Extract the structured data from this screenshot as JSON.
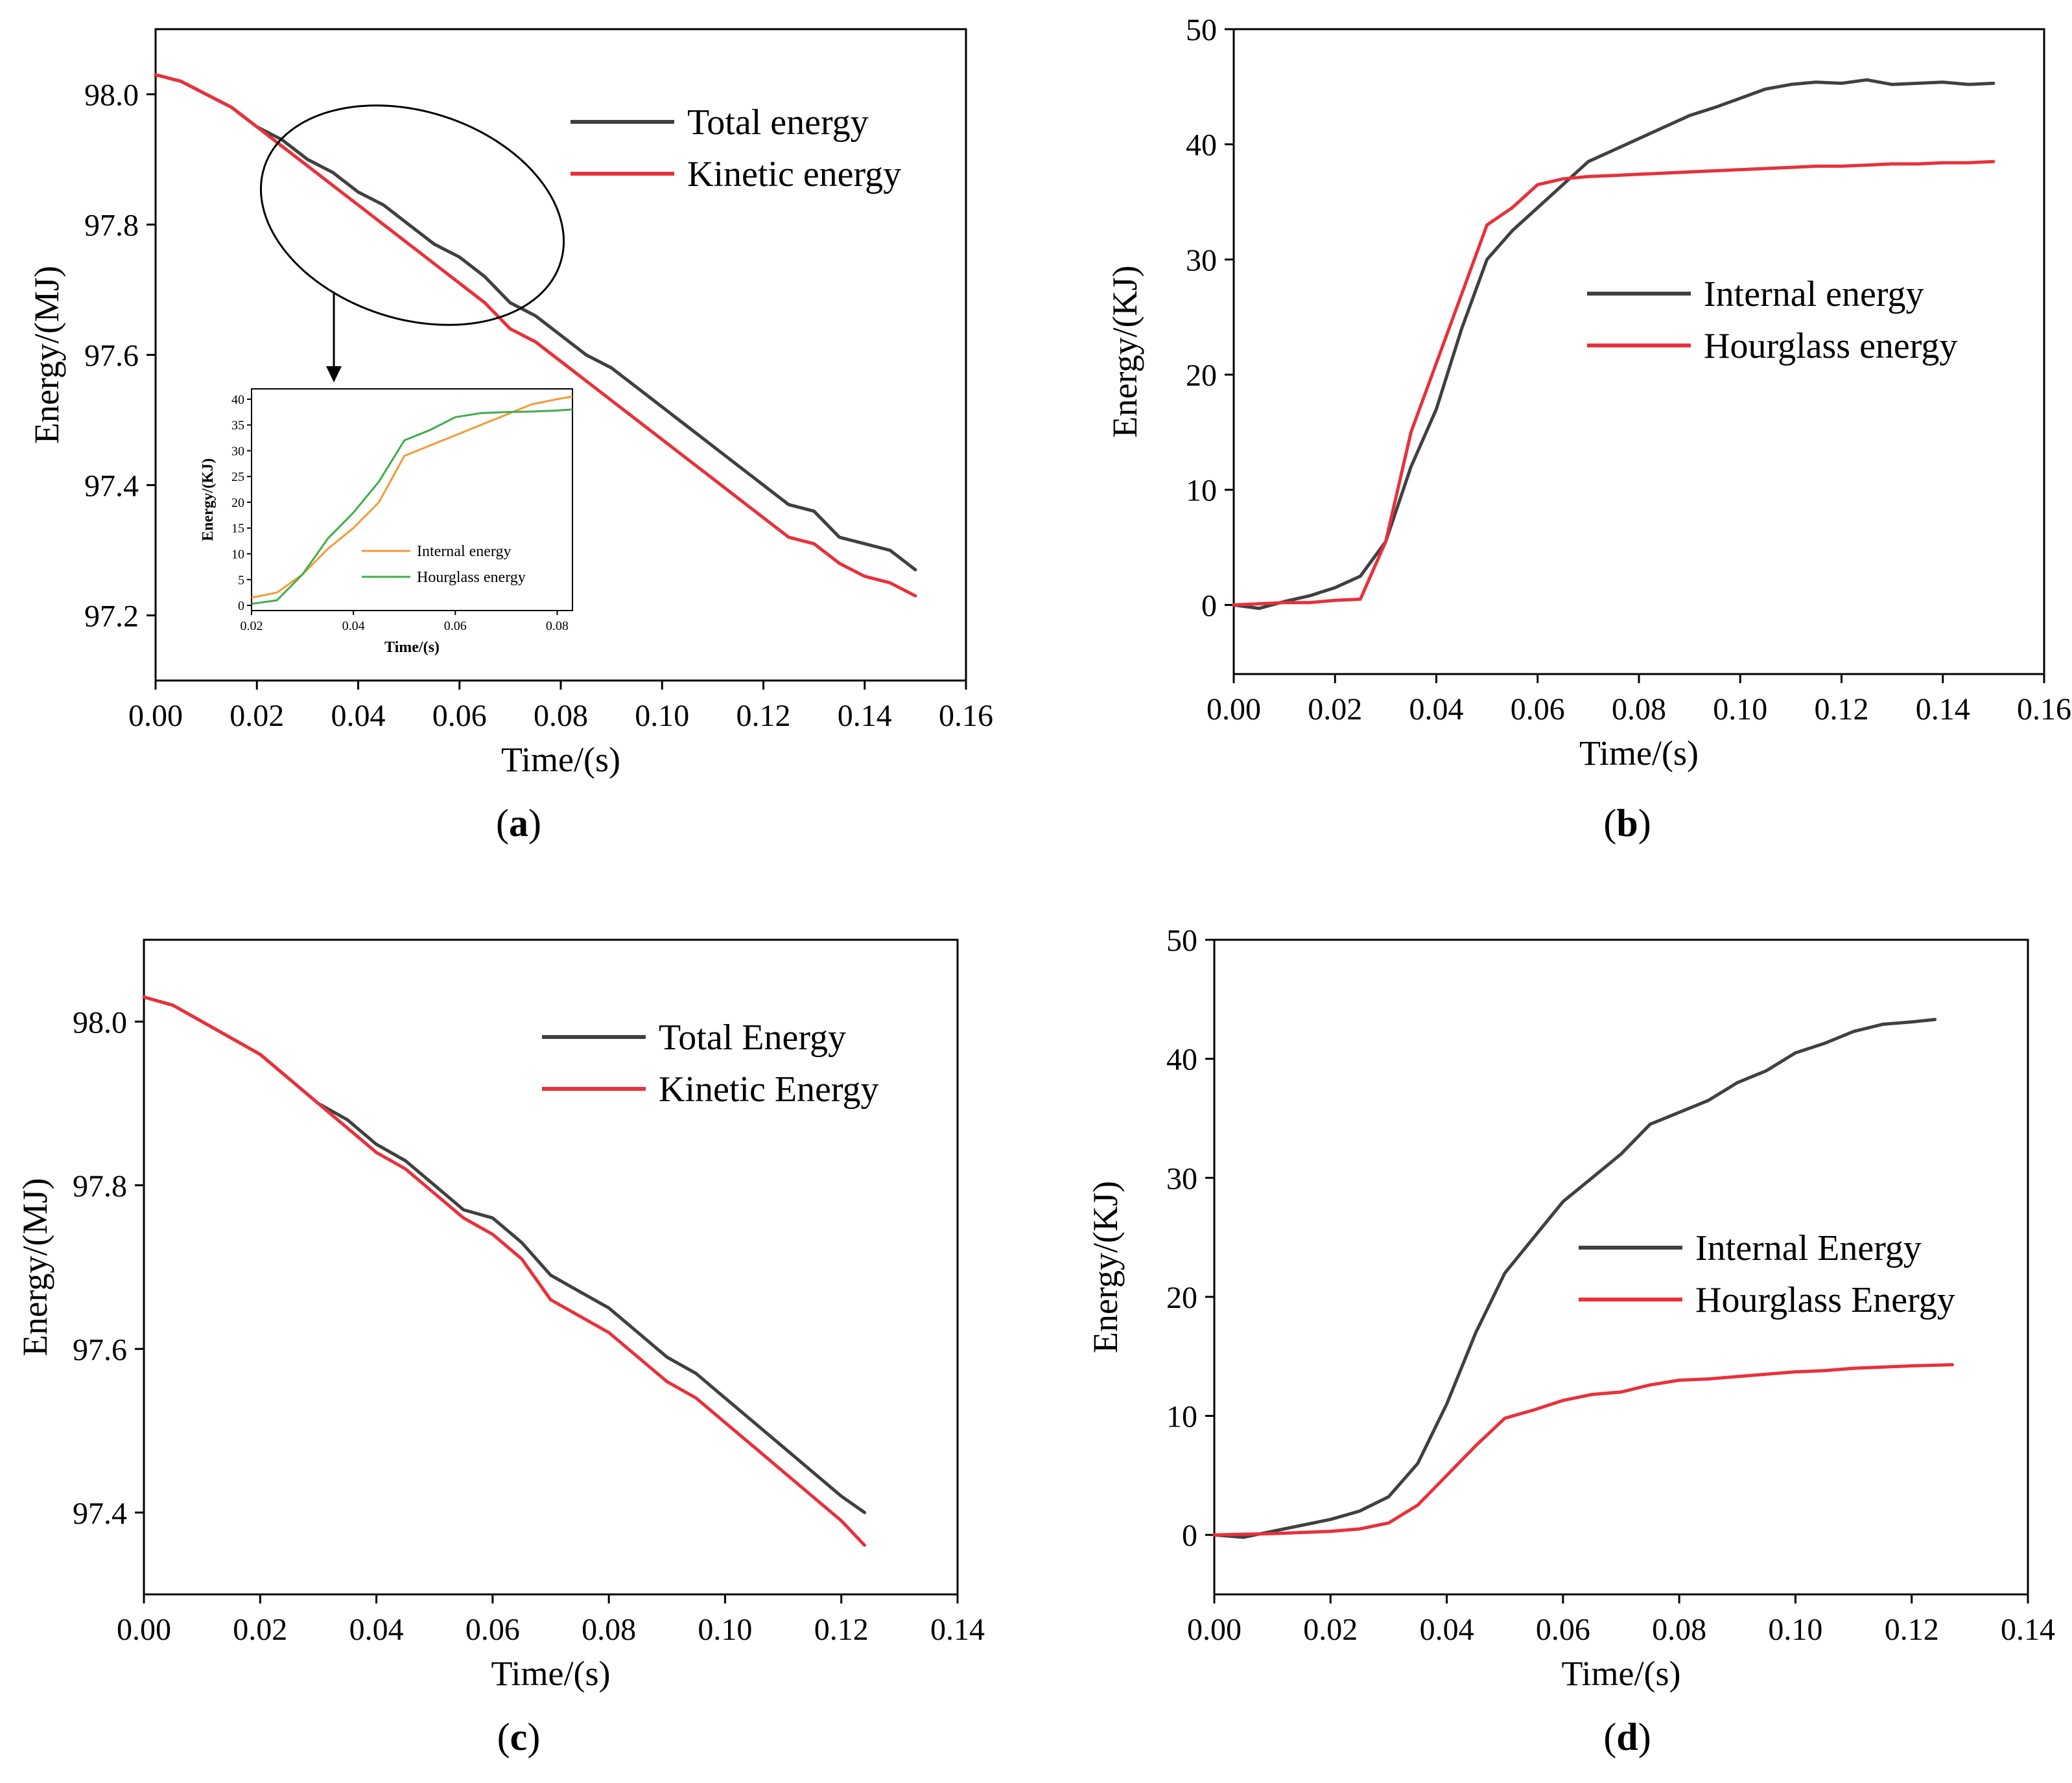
{
  "panels": [
    {
      "id": "a",
      "label_letter": "a"
    },
    {
      "id": "b",
      "label_letter": "b"
    },
    {
      "id": "c",
      "label_letter": "c"
    },
    {
      "id": "d",
      "label_letter": "d"
    }
  ],
  "chart_data": [
    {
      "id": "a",
      "type": "line",
      "xlabel": "Time/(s)",
      "ylabel": "Energy/(MJ)",
      "xlim": [
        0,
        0.16
      ],
      "ylim": [
        97.1,
        98.1
      ],
      "xticks": [
        "0.00",
        "0.02",
        "0.04",
        "0.06",
        "0.08",
        "0.10",
        "0.12",
        "0.14",
        "0.16"
      ],
      "yticks": [
        "97.2",
        "97.4",
        "97.6",
        "97.8",
        "98.0"
      ],
      "legend_position": "top-right",
      "series": [
        {
          "name": "Total energy",
          "color": "#404040",
          "x": [
            0,
            0.005,
            0.01,
            0.015,
            0.02,
            0.025,
            0.03,
            0.035,
            0.04,
            0.045,
            0.05,
            0.055,
            0.06,
            0.065,
            0.07,
            0.075,
            0.08,
            0.085,
            0.09,
            0.095,
            0.1,
            0.105,
            0.11,
            0.115,
            0.12,
            0.125,
            0.13,
            0.135,
            0.14,
            0.145,
            0.15
          ],
          "y": [
            98.03,
            98.02,
            98.0,
            97.98,
            97.95,
            97.93,
            97.9,
            97.88,
            97.85,
            97.83,
            97.8,
            97.77,
            97.75,
            97.72,
            97.68,
            97.66,
            97.63,
            97.6,
            97.58,
            97.55,
            97.52,
            97.49,
            97.46,
            97.43,
            97.4,
            97.37,
            97.36,
            97.32,
            97.31,
            97.3,
            97.27
          ]
        },
        {
          "name": "Kinetic energy",
          "color": "#e8313a",
          "x": [
            0,
            0.005,
            0.01,
            0.015,
            0.02,
            0.025,
            0.03,
            0.035,
            0.04,
            0.045,
            0.05,
            0.055,
            0.06,
            0.065,
            0.07,
            0.075,
            0.08,
            0.085,
            0.09,
            0.095,
            0.1,
            0.105,
            0.11,
            0.115,
            0.12,
            0.125,
            0.13,
            0.135,
            0.14,
            0.145,
            0.15
          ],
          "y": [
            98.03,
            98.02,
            98.0,
            97.98,
            97.95,
            97.92,
            97.89,
            97.86,
            97.83,
            97.8,
            97.77,
            97.74,
            97.71,
            97.68,
            97.64,
            97.62,
            97.59,
            97.56,
            97.53,
            97.5,
            97.47,
            97.44,
            97.41,
            97.38,
            97.35,
            97.32,
            97.31,
            97.28,
            97.26,
            97.25,
            97.23
          ]
        }
      ],
      "inset": {
        "xlabel": "Time/(s)",
        "ylabel": "Energy/(KJ)",
        "xlim": [
          0.02,
          0.083
        ],
        "ylim": [
          -1,
          42
        ],
        "xticks": [
          "0.02",
          "0.04",
          "0.06",
          "0.08"
        ],
        "yticks": [
          "0",
          "5",
          "10",
          "15",
          "20",
          "25",
          "30",
          "35",
          "40"
        ],
        "series": [
          {
            "name": "Internal energy",
            "color": "#f39a35",
            "x": [
              0.02,
              0.025,
              0.03,
              0.035,
              0.04,
              0.045,
              0.05,
              0.055,
              0.06,
              0.065,
              0.07,
              0.075,
              0.08,
              0.083
            ],
            "y": [
              1.5,
              2.5,
              6,
              11,
              15,
              20,
              29,
              31,
              33,
              35,
              37,
              39,
              40,
              40.5
            ]
          },
          {
            "name": "Hourglass energy",
            "color": "#3fae49",
            "x": [
              0.02,
              0.025,
              0.03,
              0.035,
              0.04,
              0.045,
              0.05,
              0.055,
              0.06,
              0.065,
              0.07,
              0.075,
              0.08,
              0.083
            ],
            "y": [
              0.3,
              1,
              6,
              13,
              18,
              24,
              32,
              34,
              36.5,
              37.3,
              37.5,
              37.6,
              37.8,
              38
            ]
          }
        ]
      }
    },
    {
      "id": "b",
      "type": "line",
      "xlabel": "Time/(s)",
      "ylabel": "Energy/(KJ)",
      "xlim": [
        0,
        0.16
      ],
      "ylim": [
        -6,
        50
      ],
      "xticks": [
        "0.00",
        "0.02",
        "0.04",
        "0.06",
        "0.08",
        "0.10",
        "0.12",
        "0.14",
        "0.16"
      ],
      "yticks": [
        "0",
        "10",
        "20",
        "30",
        "40",
        "50"
      ],
      "legend_position": "center-right",
      "series": [
        {
          "name": "Internal energy",
          "color": "#404040",
          "x": [
            0,
            0.005,
            0.01,
            0.015,
            0.02,
            0.025,
            0.03,
            0.035,
            0.04,
            0.045,
            0.05,
            0.055,
            0.06,
            0.065,
            0.07,
            0.075,
            0.08,
            0.085,
            0.09,
            0.095,
            0.1,
            0.105,
            0.11,
            0.115,
            0.12,
            0.125,
            0.13,
            0.135,
            0.14,
            0.145,
            0.15
          ],
          "y": [
            0,
            -0.3,
            0.3,
            0.8,
            1.5,
            2.5,
            5.5,
            12,
            17,
            24,
            30,
            32.5,
            34.5,
            36.5,
            38.5,
            39.5,
            40.5,
            41.5,
            42.5,
            43.2,
            44,
            44.8,
            45.2,
            45.4,
            45.3,
            45.6,
            45.2,
            45.3,
            45.4,
            45.2,
            45.3
          ]
        },
        {
          "name": "Hourglass energy",
          "color": "#e8313a",
          "x": [
            0,
            0.005,
            0.01,
            0.015,
            0.02,
            0.025,
            0.03,
            0.035,
            0.04,
            0.045,
            0.05,
            0.055,
            0.06,
            0.065,
            0.07,
            0.075,
            0.08,
            0.085,
            0.09,
            0.095,
            0.1,
            0.105,
            0.11,
            0.115,
            0.12,
            0.125,
            0.13,
            0.135,
            0.14,
            0.145,
            0.15
          ],
          "y": [
            0,
            0.1,
            0.2,
            0.2,
            0.4,
            0.5,
            5.5,
            15,
            21,
            27,
            33,
            34.5,
            36.5,
            37,
            37.2,
            37.3,
            37.4,
            37.5,
            37.6,
            37.7,
            37.8,
            37.9,
            38,
            38.1,
            38.1,
            38.2,
            38.3,
            38.3,
            38.4,
            38.4,
            38.5
          ]
        }
      ]
    },
    {
      "id": "c",
      "type": "line",
      "xlabel": "Time/(s)",
      "ylabel": "Energy/(MJ)",
      "xlim": [
        0,
        0.14
      ],
      "ylim": [
        97.3,
        98.1
      ],
      "xticks": [
        "0.00",
        "0.02",
        "0.04",
        "0.06",
        "0.08",
        "0.10",
        "0.12",
        "0.14"
      ],
      "yticks": [
        "97.4",
        "97.6",
        "97.8",
        "98.0"
      ],
      "legend_position": "top-right",
      "series": [
        {
          "name": "Total Energy",
          "color": "#404040",
          "x": [
            0,
            0.005,
            0.01,
            0.015,
            0.02,
            0.025,
            0.03,
            0.035,
            0.04,
            0.045,
            0.05,
            0.055,
            0.06,
            0.065,
            0.07,
            0.075,
            0.08,
            0.085,
            0.09,
            0.095,
            0.1,
            0.105,
            0.11,
            0.115,
            0.12,
            0.124
          ],
          "y": [
            98.03,
            98.02,
            98.0,
            97.98,
            97.96,
            97.93,
            97.9,
            97.88,
            97.85,
            97.83,
            97.8,
            97.77,
            97.76,
            97.73,
            97.69,
            97.67,
            97.65,
            97.62,
            97.59,
            97.57,
            97.54,
            97.51,
            97.48,
            97.45,
            97.42,
            97.4
          ]
        },
        {
          "name": "Kinetic Energy",
          "color": "#e8313a",
          "x": [
            0,
            0.005,
            0.01,
            0.015,
            0.02,
            0.025,
            0.03,
            0.035,
            0.04,
            0.045,
            0.05,
            0.055,
            0.06,
            0.065,
            0.07,
            0.075,
            0.08,
            0.085,
            0.09,
            0.095,
            0.1,
            0.105,
            0.11,
            0.115,
            0.12,
            0.124
          ],
          "y": [
            98.03,
            98.02,
            98.0,
            97.98,
            97.96,
            97.93,
            97.9,
            97.87,
            97.84,
            97.82,
            97.79,
            97.76,
            97.74,
            97.71,
            97.66,
            97.64,
            97.62,
            97.59,
            97.56,
            97.54,
            97.51,
            97.48,
            97.45,
            97.42,
            97.39,
            97.36
          ]
        }
      ]
    },
    {
      "id": "d",
      "type": "line",
      "xlabel": "Time/(s)",
      "ylabel": "Energy/(KJ)",
      "xlim": [
        0,
        0.14
      ],
      "ylim": [
        -5,
        50
      ],
      "xticks": [
        "0.00",
        "0.02",
        "0.04",
        "0.06",
        "0.08",
        "0.10",
        "0.12",
        "0.14"
      ],
      "yticks": [
        "0",
        "10",
        "20",
        "30",
        "40",
        "50"
      ],
      "legend_position": "center-right",
      "series": [
        {
          "name": "Internal Energy",
          "color": "#404040",
          "x": [
            0,
            0.005,
            0.01,
            0.015,
            0.02,
            0.025,
            0.03,
            0.035,
            0.04,
            0.045,
            0.05,
            0.055,
            0.06,
            0.065,
            0.07,
            0.075,
            0.08,
            0.085,
            0.09,
            0.095,
            0.1,
            0.105,
            0.11,
            0.115,
            0.12,
            0.124
          ],
          "y": [
            0,
            -0.2,
            0.3,
            0.8,
            1.3,
            2,
            3.2,
            6,
            11,
            17,
            22,
            25,
            28,
            30,
            32,
            34.5,
            35.5,
            36.5,
            38,
            39,
            40.5,
            41.3,
            42.3,
            42.9,
            43.1,
            43.3
          ]
        },
        {
          "name": "Hourglass Energy",
          "color": "#e8313a",
          "x": [
            0,
            0.005,
            0.01,
            0.015,
            0.02,
            0.025,
            0.03,
            0.035,
            0.04,
            0.045,
            0.05,
            0.055,
            0.06,
            0.065,
            0.07,
            0.075,
            0.08,
            0.085,
            0.09,
            0.095,
            0.1,
            0.105,
            0.11,
            0.115,
            0.12,
            0.127
          ],
          "y": [
            0,
            0.05,
            0.1,
            0.2,
            0.3,
            0.5,
            1,
            2.5,
            5,
            7.5,
            9.8,
            10.5,
            11.3,
            11.8,
            12,
            12.6,
            13,
            13.1,
            13.3,
            13.5,
            13.7,
            13.8,
            14,
            14.1,
            14.2,
            14.3
          ]
        }
      ]
    }
  ]
}
